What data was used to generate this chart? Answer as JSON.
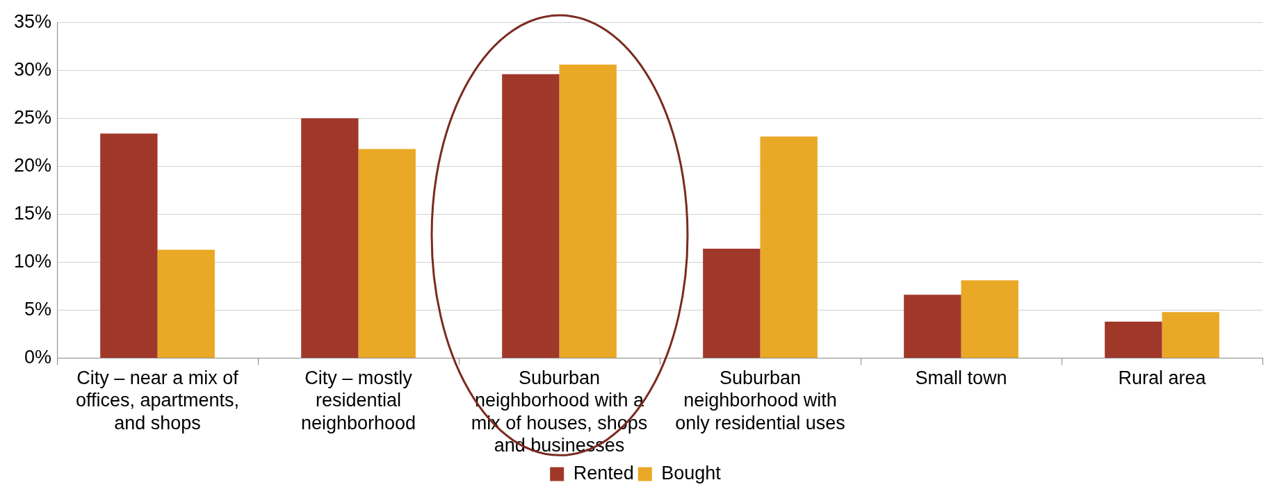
{
  "chart_data": {
    "type": "bar",
    "categories": [
      "City – near a mix of offices, apartments, and shops",
      "City – mostly residential neighborhood",
      "Suburban neighborhood with a mix of houses, shops and businesses",
      "Suburban neighborhood with only residential uses",
      "Small town",
      "Rural area"
    ],
    "series": [
      {
        "name": "Rented",
        "color": "#a0382a",
        "values": [
          23.4,
          25.0,
          29.6,
          11.4,
          6.6,
          3.8
        ]
      },
      {
        "name": "Bought",
        "color": "#e9a826",
        "values": [
          11.3,
          21.8,
          30.6,
          23.1,
          8.1,
          4.8
        ]
      }
    ],
    "ylim": [
      0,
      35
    ],
    "yticks": [
      {
        "value": 0,
        "label": "0%"
      },
      {
        "value": 5,
        "label": "5%"
      },
      {
        "value": 10,
        "label": "10%"
      },
      {
        "value": 15,
        "label": "15%"
      },
      {
        "value": 20,
        "label": "20%"
      },
      {
        "value": 25,
        "label": "25%"
      },
      {
        "value": 30,
        "label": "30%"
      },
      {
        "value": 35,
        "label": "35%"
      }
    ],
    "grid": "y",
    "legend": "bottom"
  }
}
